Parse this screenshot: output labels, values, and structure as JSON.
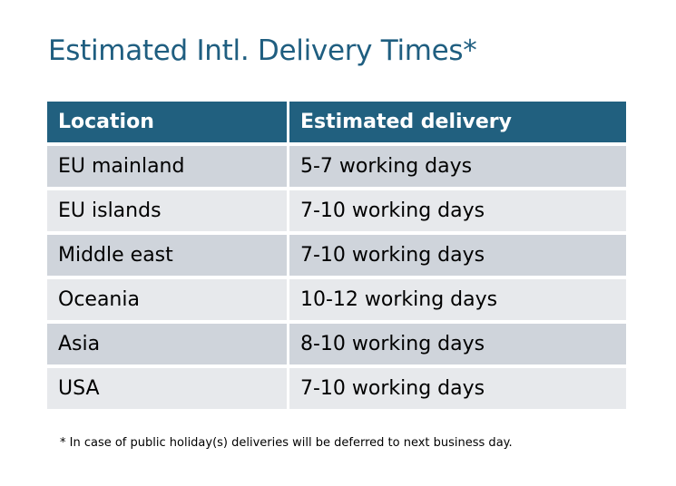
{
  "title": "Estimated Intl. Delivery Times*",
  "table": {
    "headers": [
      "Location",
      "Estimated delivery"
    ],
    "rows": [
      [
        "EU mainland",
        "5-7 working days"
      ],
      [
        "EU islands",
        "7-10 working days"
      ],
      [
        "Middle east",
        "7-10 working days"
      ],
      [
        "Oceania",
        "10-12 working days"
      ],
      [
        "Asia",
        "8-10 working days"
      ],
      [
        "USA",
        "7-10 working days"
      ]
    ]
  },
  "footnote": "* In case of public holiday(s) deliveries will be deferred to next business day.",
  "colors": {
    "header": "#21607f",
    "title": "#1f5e80",
    "row_odd": "#cfd4db",
    "row_even": "#e7e9ec"
  }
}
